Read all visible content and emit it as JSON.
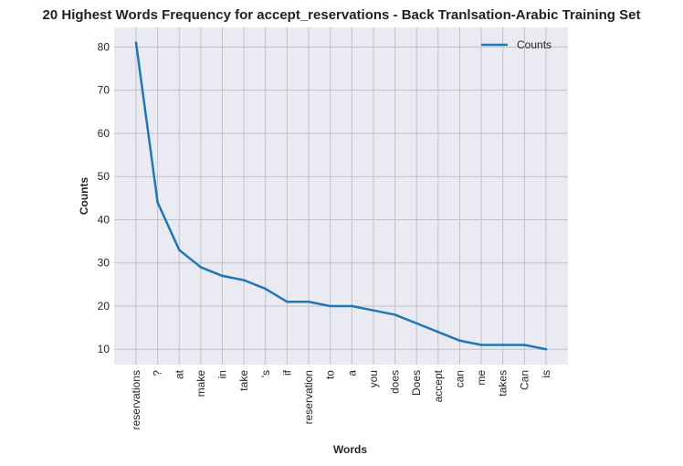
{
  "chart_data": {
    "type": "line",
    "title": "20 Highest Words Frequency for accept_reservations - Back Tranlsation-Arabic Training Set",
    "xlabel": "Words",
    "ylabel": "Counts",
    "categories": [
      "reservations",
      "?",
      "at",
      "make",
      "in",
      "take",
      "'s",
      "if",
      "reservation",
      "to",
      "a",
      "you",
      "does",
      "Does",
      "accept",
      "can",
      "me",
      "takes",
      "Can",
      "is"
    ],
    "series": [
      {
        "name": "Counts",
        "values": [
          81,
          44,
          33,
          29,
          27,
          26,
          24,
          21,
          21,
          20,
          20,
          19,
          18,
          16,
          14,
          12,
          11,
          11,
          11,
          10
        ],
        "color": "#1f77b4"
      }
    ],
    "yticks": [
      10,
      20,
      30,
      40,
      50,
      60,
      70,
      80
    ],
    "ylim": [
      6.45,
      84.55
    ],
    "grid": true,
    "legend": "top-right",
    "background": "#eaeaf2",
    "grid_color": "#c0c0c8"
  }
}
